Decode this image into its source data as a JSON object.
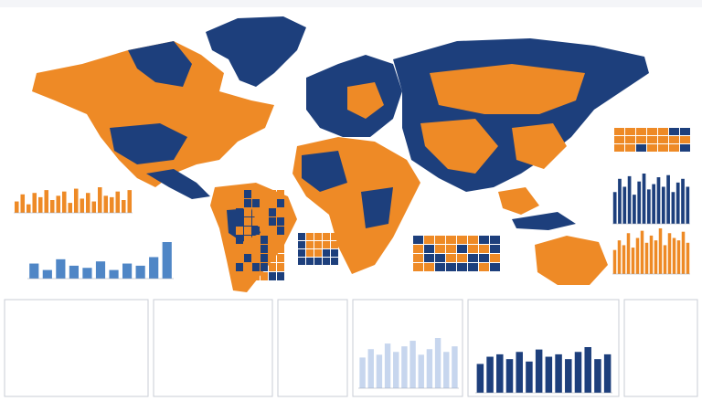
{
  "chart_data": [
    {
      "type": "bar",
      "color": "#ee8a26",
      "values": [
        40,
        65,
        30,
        70,
        55,
        80,
        45,
        60,
        75,
        35,
        85,
        50,
        70,
        40,
        90,
        60,
        55,
        75,
        45,
        80
      ]
    },
    {
      "type": "bar",
      "color": "#4f86c6",
      "values": [
        35,
        20,
        45,
        30,
        25,
        40,
        20,
        35,
        30,
        50,
        85
      ]
    },
    {
      "type": "bar",
      "color": "#1d3f7c",
      "values": [
        60,
        85,
        70,
        90,
        55,
        80,
        95,
        65,
        75,
        88,
        70,
        92,
        60,
        78,
        85,
        70
      ]
    },
    {
      "type": "bar",
      "color": "#ee8a26",
      "values": [
        50,
        70,
        60,
        85,
        55,
        75,
        90,
        65,
        80,
        70,
        95,
        60,
        85,
        75,
        70,
        88,
        65
      ]
    },
    {
      "type": "bar",
      "color": "#c7d6ee",
      "values": [
        55,
        70,
        60,
        80,
        65,
        75,
        85,
        60,
        70,
        90,
        65,
        75
      ]
    },
    {
      "type": "bar",
      "color": "#1d3f7c",
      "values": [
        60,
        75,
        80,
        70,
        85,
        65,
        90,
        75,
        80,
        70,
        85,
        95,
        70,
        80
      ]
    }
  ]
}
